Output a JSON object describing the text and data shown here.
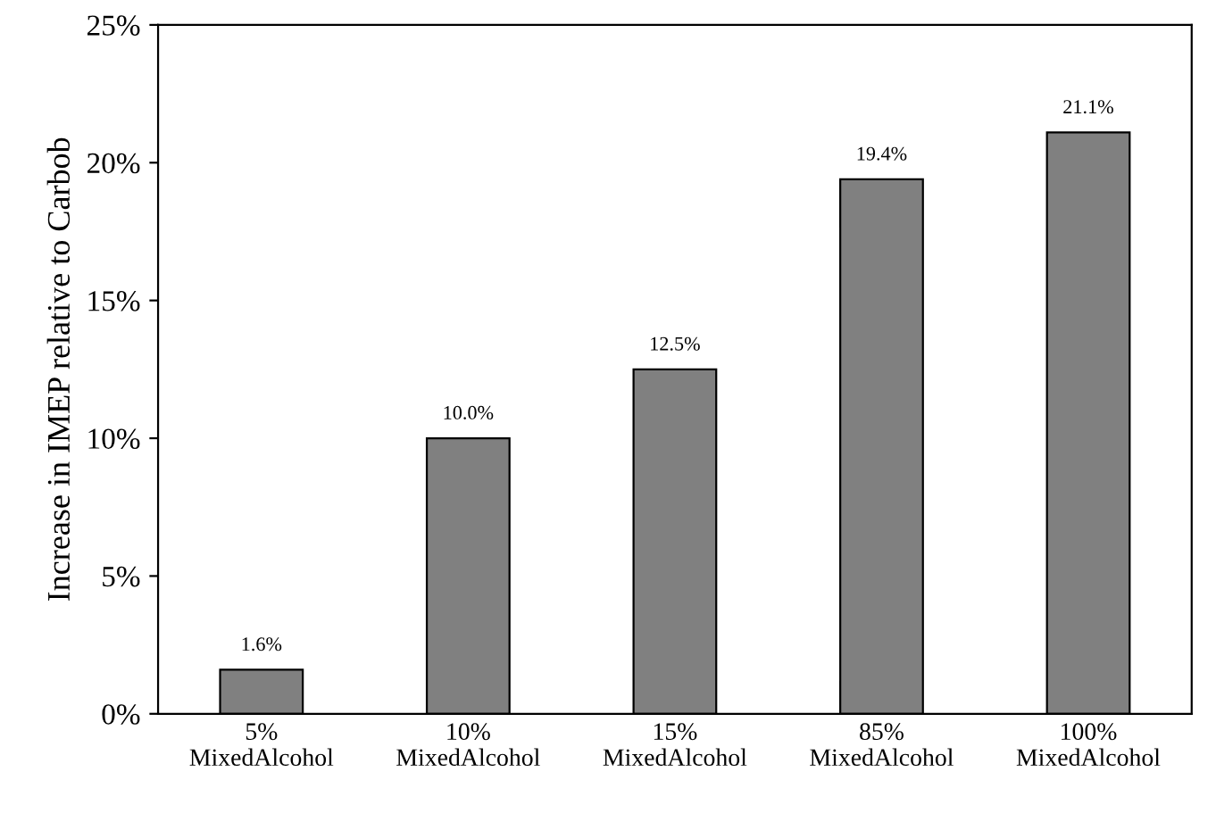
{
  "chart_data": {
    "type": "bar",
    "ylabel": "Increase in IMEP relative to Carbob",
    "categories": [
      "5%\nMixedAlcohol",
      "10%\nMixedAlcohol",
      "15%\nMixedAlcohol",
      "85%\nMixedAlcohol",
      "100%\nMixedAlcohol"
    ],
    "values": [
      1.6,
      10.0,
      12.5,
      19.4,
      21.1
    ],
    "value_labels": [
      "1.6%",
      "10.0%",
      "12.5%",
      "19.4%",
      "21.1%"
    ],
    "color": "#808080",
    "ylim": [
      0,
      25
    ],
    "yticks": [
      {
        "value": 0,
        "label": "0%"
      },
      {
        "value": 5,
        "label": "5%"
      },
      {
        "value": 10,
        "label": "10%"
      },
      {
        "value": 15,
        "label": "15%"
      },
      {
        "value": 20,
        "label": "20%"
      },
      {
        "value": 25,
        "label": "25%"
      }
    ],
    "grid": false,
    "legend": false
  }
}
